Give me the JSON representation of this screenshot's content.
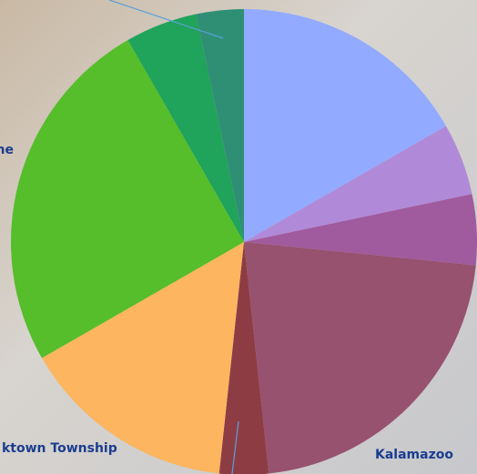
{
  "chart_data": {
    "type": "pie",
    "categories": [
      null,
      null,
      null,
      "Kalamazoo",
      "ktown Township",
      null,
      "ne",
      null,
      null
    ],
    "values": [
      16.7,
      5,
      4.9,
      21.7,
      3.4,
      15,
      25,
      5,
      3.3
    ],
    "colors": [
      "#92aaff",
      "#b08ad8",
      "#a05a9e",
      "#96526e",
      "#8e3c44",
      "#fdb55f",
      "#56bd2b",
      "#20a35a",
      "#2f8f75"
    ]
  }
}
